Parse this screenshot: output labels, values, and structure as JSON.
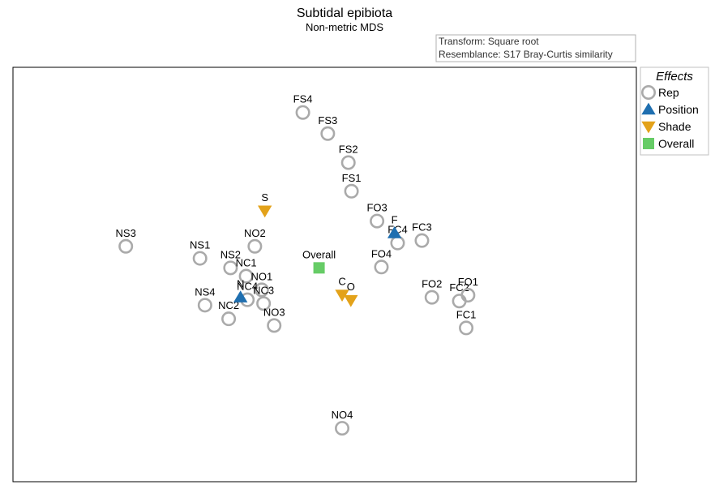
{
  "chart_data": {
    "type": "scatter",
    "title": "Subtidal epibiota",
    "subtitle": "Non-metric MDS",
    "info_lines": [
      "Transform: Square root",
      "Resemblance: S17 Bray-Curtis similarity"
    ],
    "legend": {
      "title": "Effects",
      "placement": "right",
      "entries": [
        {
          "name": "Rep",
          "shape": "circle-open",
          "color": "#aaaaaa"
        },
        {
          "name": "Position",
          "shape": "triangle-up",
          "color": "#1f6fb0"
        },
        {
          "name": "Shade",
          "shape": "triangle-down",
          "color": "#e3a21a"
        },
        {
          "name": "Overall",
          "shape": "square",
          "color": "#66cc66"
        }
      ]
    },
    "xlim": [
      0,
      100
    ],
    "ylim": [
      0,
      100
    ],
    "grid": false,
    "series": [
      {
        "name": "Rep",
        "points": [
          {
            "label": "FS4",
            "x": 46.5,
            "y": 89.1
          },
          {
            "label": "FS3",
            "x": 50.5,
            "y": 84.0
          },
          {
            "label": "FS2",
            "x": 53.8,
            "y": 77.0
          },
          {
            "label": "FS1",
            "x": 54.3,
            "y": 70.1
          },
          {
            "label": "FO3",
            "x": 58.4,
            "y": 62.9
          },
          {
            "label": "FC4",
            "x": 61.7,
            "y": 57.6
          },
          {
            "label": "FC3",
            "x": 65.6,
            "y": 58.2
          },
          {
            "label": "FO4",
            "x": 59.1,
            "y": 51.8
          },
          {
            "label": "FO2",
            "x": 67.2,
            "y": 44.5
          },
          {
            "label": "FC2",
            "x": 71.6,
            "y": 43.6
          },
          {
            "label": "FO1",
            "x": 73.0,
            "y": 45.0
          },
          {
            "label": "FC1",
            "x": 72.7,
            "y": 37.1
          },
          {
            "label": "NS3",
            "x": 18.1,
            "y": 56.8
          },
          {
            "label": "NS1",
            "x": 30.0,
            "y": 53.9
          },
          {
            "label": "NO2",
            "x": 38.8,
            "y": 56.8
          },
          {
            "label": "NS2",
            "x": 34.9,
            "y": 51.6
          },
          {
            "label": "NC1",
            "x": 37.4,
            "y": 49.6
          },
          {
            "label": "NO1",
            "x": 39.9,
            "y": 46.3
          },
          {
            "label": "NC4",
            "x": 37.6,
            "y": 43.9
          },
          {
            "label": "NC3",
            "x": 40.2,
            "y": 43.0
          },
          {
            "label": "NS4",
            "x": 30.8,
            "y": 42.6
          },
          {
            "label": "NC2",
            "x": 34.6,
            "y": 39.3
          },
          {
            "label": "NO3",
            "x": 41.9,
            "y": 37.7
          },
          {
            "label": "NO4",
            "x": 52.8,
            "y": 12.9
          }
        ]
      },
      {
        "name": "Position",
        "points": [
          {
            "label": "F",
            "x": 61.2,
            "y": 60.0
          },
          {
            "label": "N",
            "x": 36.5,
            "y": 44.5
          }
        ]
      },
      {
        "name": "Shade",
        "points": [
          {
            "label": "S",
            "x": 40.4,
            "y": 65.4
          },
          {
            "label": "C",
            "x": 52.8,
            "y": 45.1
          },
          {
            "label": "O",
            "x": 54.2,
            "y": 43.8
          }
        ]
      },
      {
        "name": "Overall",
        "points": [
          {
            "label": "Overall",
            "x": 49.1,
            "y": 51.6
          }
        ]
      }
    ]
  }
}
